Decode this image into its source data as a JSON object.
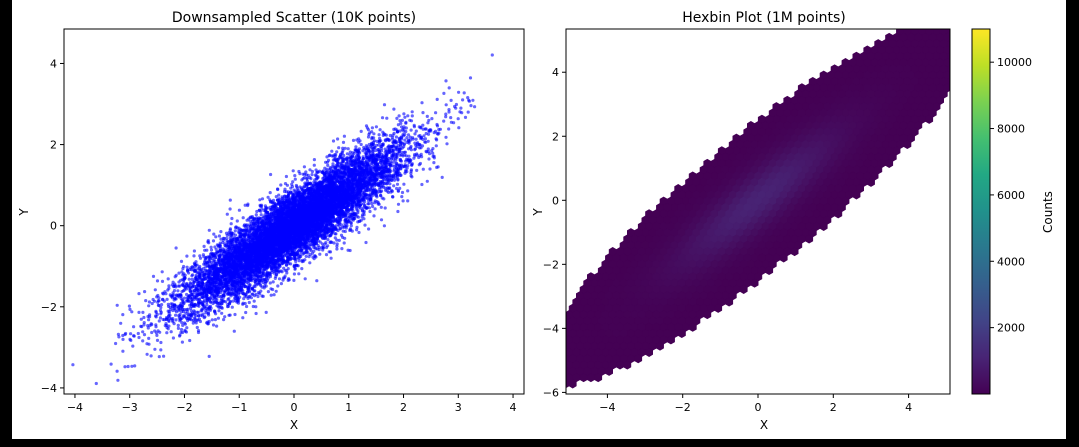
{
  "chart_data": [
    {
      "type": "scatter",
      "title": "Downsampled Scatter (10K points)",
      "xlabel": "X",
      "ylabel": "Y",
      "xlim": [
        -4.2,
        4.2
      ],
      "ylim": [
        -4.15,
        4.85
      ],
      "xticks": [
        -4,
        -3,
        -2,
        -1,
        0,
        1,
        2,
        3,
        4
      ],
      "yticks": [
        -4,
        -2,
        0,
        2,
        4
      ],
      "point_count": 10000,
      "distribution": {
        "mean_x": 0,
        "mean_y": 0,
        "std_x": 1,
        "std_y": 1,
        "correlation": 0.9
      },
      "point_color": "#0000ff",
      "point_alpha": 0.6,
      "grid": false
    },
    {
      "type": "heatmap",
      "subtype": "hexbin",
      "title": "Hexbin Plot (1M points)",
      "xlabel": "X",
      "ylabel": "Y",
      "xlim": [
        -5.1,
        5.1
      ],
      "ylim": [
        -6.05,
        5.35
      ],
      "xticks": [
        -4,
        -2,
        0,
        2,
        4
      ],
      "yticks": [
        -6,
        -4,
        -2,
        0,
        2,
        4
      ],
      "point_count": 1000000,
      "distribution": {
        "mean_x": 0,
        "mean_y": 0,
        "std_x": 1.45,
        "std_y": 1.45,
        "correlation": 0.9
      },
      "colormap": "viridis",
      "colorbar": {
        "label": "Counts",
        "min": 0,
        "max": 11000,
        "ticks": [
          2000,
          4000,
          6000,
          8000,
          10000
        ]
      },
      "grid": false
    }
  ]
}
